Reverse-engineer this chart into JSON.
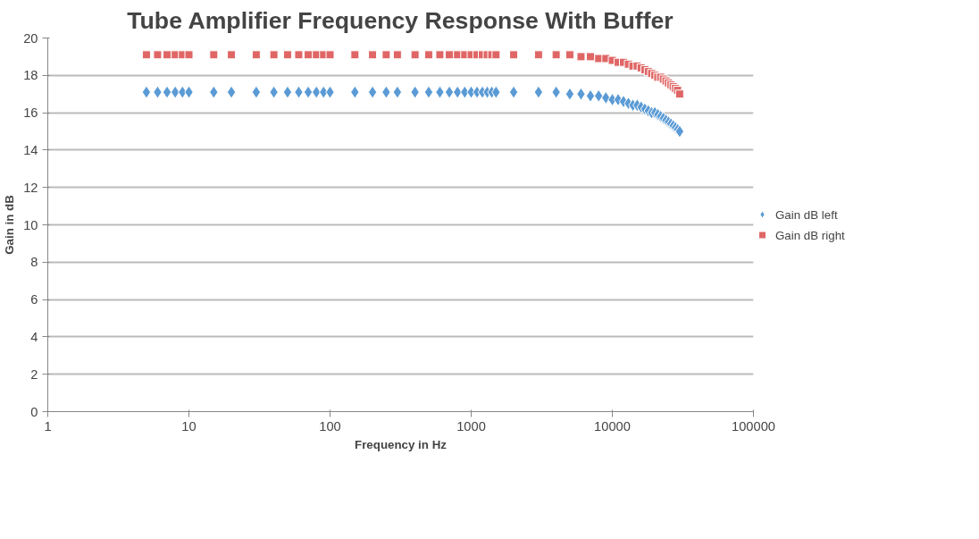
{
  "chart_data": {
    "type": "scatter",
    "title": "Tube Amplifier Frequency Response With Buffer",
    "xlabel": "Frequency in Hz",
    "ylabel": "Gain in dB",
    "x": [
      5,
      6,
      7,
      8,
      9,
      10,
      15,
      20,
      30,
      40,
      50,
      60,
      70,
      80,
      90,
      100,
      150,
      200,
      250,
      300,
      400,
      500,
      600,
      700,
      800,
      900,
      1000,
      1100,
      1200,
      1300,
      1400,
      1500,
      2000,
      3000,
      4000,
      5000,
      6000,
      7000,
      8000,
      9000,
      10000,
      11000,
      12000,
      13000,
      14000,
      15000,
      16000,
      17000,
      18000,
      19000,
      20000,
      21000,
      22000,
      23000,
      24000,
      25000,
      26000,
      27000,
      28000,
      29000,
      30000
    ],
    "series": [
      {
        "name": "Gain dB left",
        "color": "#5b9bd5",
        "marker": "diamond",
        "values": [
          17.1,
          17.1,
          17.1,
          17.1,
          17.1,
          17.1,
          17.1,
          17.1,
          17.1,
          17.1,
          17.1,
          17.1,
          17.1,
          17.1,
          17.1,
          17.1,
          17.1,
          17.1,
          17.1,
          17.1,
          17.1,
          17.1,
          17.1,
          17.1,
          17.1,
          17.1,
          17.1,
          17.1,
          17.1,
          17.1,
          17.1,
          17.1,
          17.1,
          17.1,
          17.1,
          17.0,
          17.0,
          16.9,
          16.9,
          16.8,
          16.7,
          16.7,
          16.6,
          16.5,
          16.4,
          16.4,
          16.3,
          16.2,
          16.1,
          16.0,
          16.0,
          15.9,
          15.8,
          15.7,
          15.6,
          15.5,
          15.4,
          15.3,
          15.2,
          15.1,
          15.0
        ]
      },
      {
        "name": "Gain dB right",
        "color": "#e06666",
        "marker": "square",
        "values": [
          19.1,
          19.1,
          19.1,
          19.1,
          19.1,
          19.1,
          19.1,
          19.1,
          19.1,
          19.1,
          19.1,
          19.1,
          19.1,
          19.1,
          19.1,
          19.1,
          19.1,
          19.1,
          19.1,
          19.1,
          19.1,
          19.1,
          19.1,
          19.1,
          19.1,
          19.1,
          19.1,
          19.1,
          19.1,
          19.1,
          19.1,
          19.1,
          19.1,
          19.1,
          19.1,
          19.1,
          19.0,
          19.0,
          18.9,
          18.9,
          18.8,
          18.7,
          18.7,
          18.6,
          18.5,
          18.5,
          18.4,
          18.3,
          18.2,
          18.1,
          18.0,
          17.9,
          17.9,
          17.8,
          17.7,
          17.6,
          17.5,
          17.4,
          17.3,
          17.2,
          17.0
        ]
      }
    ],
    "log": "x",
    "xlim": [
      1,
      100000
    ],
    "xticks": [
      1,
      10,
      100,
      1000,
      10000,
      100000
    ],
    "ylim": [
      0,
      20
    ],
    "yticks": [
      0,
      2,
      4,
      6,
      8,
      10,
      12,
      14,
      16,
      18,
      20
    ],
    "grid": "y",
    "legend": "right"
  }
}
